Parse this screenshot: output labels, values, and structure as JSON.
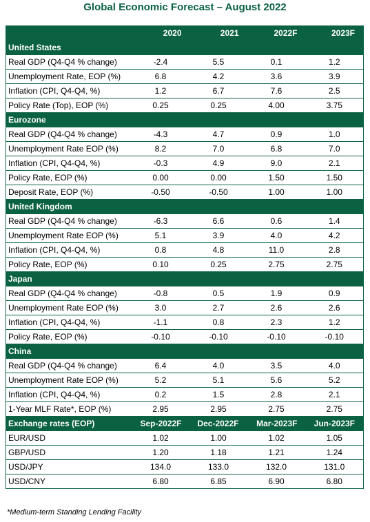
{
  "title": "Global Economic Forecast – August 2022",
  "table": {
    "columns": [
      "2020",
      "2021",
      "2022F",
      "2023F"
    ],
    "sections": [
      {
        "name": "United States",
        "rows": [
          [
            "Real GDP (Q4-Q4 % change)",
            "-2.4",
            "5.5",
            "0.1",
            "1.2"
          ],
          [
            "Unemployment Rate, EOP (%)",
            "6.8",
            "4.2",
            "3.6",
            "3.9"
          ],
          [
            "Inflation (CPI, Q4-Q4, %)",
            "1.2",
            "6.7",
            "7.6",
            "2.5"
          ],
          [
            "Policy Rate (Top), EOP (%)",
            "0.25",
            "0.25",
            "4.00",
            "3.75"
          ]
        ]
      },
      {
        "name": "Eurozone",
        "rows": [
          [
            "Real GDP (Q4-Q4 % change)",
            "-4.3",
            "4.7",
            "0.9",
            "1.0"
          ],
          [
            "Unemployment Rate EOP (%)",
            "8.2",
            "7.0",
            "6.8",
            "7.0"
          ],
          [
            "Inflation (CPI, Q4-Q4, %)",
            "-0.3",
            "4.9",
            "9.0",
            "2.1"
          ],
          [
            "Policy Rate, EOP (%)",
            "0.00",
            "0.00",
            "1.50",
            "1.50"
          ],
          [
            "Deposit Rate, EOP (%)",
            "-0.50",
            "-0.50",
            "1.00",
            "1.00"
          ]
        ]
      },
      {
        "name": "United Kingdom",
        "rows": [
          [
            "Real GDP (Q4-Q4 % change)",
            "-6.3",
            "6.6",
            "0.6",
            "1.4"
          ],
          [
            "Unemployment Rate EOP (%)",
            "5.1",
            "3.9",
            "4.0",
            "4.2"
          ],
          [
            "Inflation (CPI, Q4-Q4, %)",
            "0.8",
            "4.8",
            "11.0",
            "2.8"
          ],
          [
            "Policy Rate, EOP (%)",
            "0.10",
            "0.25",
            "2.75",
            "2.75"
          ]
        ]
      },
      {
        "name": "Japan",
        "rows": [
          [
            "Real GDP (Q4-Q4 % change)",
            "-0.8",
            "0.5",
            "1.9",
            "0.9"
          ],
          [
            "Unemployment Rate EOP (%)",
            "3.0",
            "2.7",
            "2.6",
            "2.6"
          ],
          [
            "Inflation (CPI, Q4-Q4, %)",
            "-1.1",
            "0.8",
            "2.3",
            "1.2"
          ],
          [
            "Policy Rate, EOP (%)",
            "-0.10",
            "-0.10",
            "-0.10",
            "-0.10"
          ]
        ]
      },
      {
        "name": "China",
        "rows": [
          [
            "Real GDP (Q4-Q4 % change)",
            "6.4",
            "4.0",
            "3.5",
            "4.0"
          ],
          [
            "Unemployment Rate EOP (%)",
            "5.2",
            "5.1",
            "5.6",
            "5.2"
          ],
          [
            "Inflation (CPI, Q4-Q4, %)",
            "0.2",
            "1.5",
            "2.8",
            "2.1"
          ],
          [
            "1-Year MLF Rate*, EOP (%)",
            "2.95",
            "2.95",
            "2.75",
            "2.75"
          ]
        ]
      }
    ],
    "exchange": {
      "header": [
        "Exchange rates (EOP)",
        "Sep-2022F",
        "Dec-2022F",
        "Mar-2023F",
        "Jun-2023F"
      ],
      "rows": [
        [
          "EUR/USD",
          "1.02",
          "1.00",
          "1.02",
          "1.05"
        ],
        [
          "GBP/USD",
          "1.20",
          "1.18",
          "1.21",
          "1.24"
        ],
        [
          "USD/JPY",
          "134.0",
          "133.0",
          "132.0",
          "131.0"
        ],
        [
          "USD/CNY",
          "6.80",
          "6.85",
          "6.90",
          "6.80"
        ]
      ]
    }
  },
  "footnote": "*Medium-term Standing Lending Facility"
}
